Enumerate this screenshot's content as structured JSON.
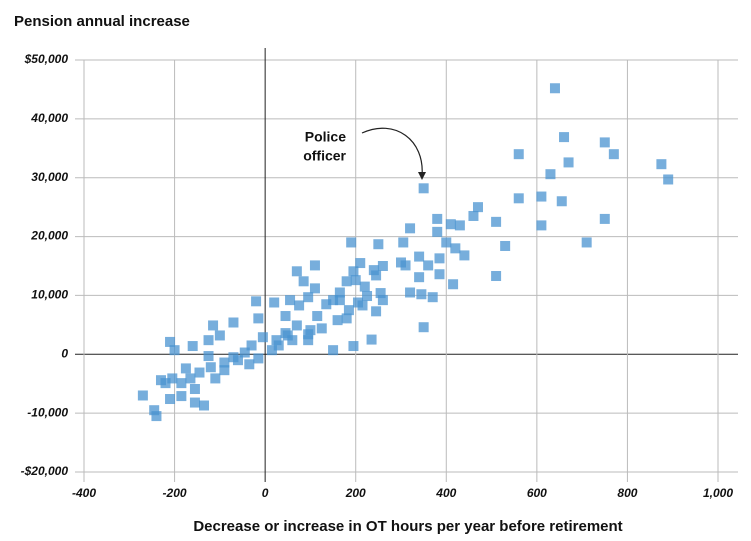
{
  "chart_data": {
    "type": "scatter",
    "title": "Pension annual increase",
    "x_label": "Decrease or increase in OT hours per year before retirement",
    "annotation": [
      "Police",
      "officer"
    ],
    "color": "#4a93d0",
    "grid": true,
    "xlim": [
      -400,
      1000
    ],
    "xticks": [
      -400,
      -200,
      0,
      200,
      400,
      600,
      800,
      {
        "value": 1000,
        "label": "1,000"
      }
    ],
    "ylim": [
      -20000,
      50000
    ],
    "yticks": [
      {
        "value": -20000,
        "label": "-$20,000"
      },
      {
        "value": -10000,
        "label": "-10,000"
      },
      0,
      {
        "value": 10000,
        "label": "10,000"
      },
      {
        "value": 20000,
        "label": "20,000"
      },
      {
        "value": 30000,
        "label": "30,000"
      },
      {
        "value": 40000,
        "label": "40,000"
      },
      {
        "value": 50000,
        "label": "$50,000"
      }
    ],
    "x": [
      640,
      660,
      560,
      750,
      770,
      670,
      875,
      890,
      630,
      610,
      655,
      560,
      350,
      610,
      750,
      710,
      510,
      530,
      510,
      470,
      460,
      410,
      430,
      380,
      380,
      320,
      305,
      400,
      420,
      440,
      385,
      360,
      340,
      310,
      300,
      340,
      385,
      415,
      370,
      345,
      320,
      350,
      250,
      190,
      245,
      260,
      240,
      210,
      195,
      180,
      165,
      150,
      200,
      220,
      255,
      245,
      235,
      195,
      150,
      215,
      185,
      115,
      160,
      125,
      100,
      135,
      110,
      110,
      70,
      85,
      95,
      75,
      55,
      20,
      -20,
      45,
      70,
      45,
      25,
      60,
      95,
      -5,
      -30,
      -15,
      -70,
      -115,
      -100,
      -125,
      -160,
      -200,
      -210,
      -45,
      -70,
      -90,
      -120,
      -145,
      -175,
      -165,
      -185,
      -205,
      -220,
      -230,
      -155,
      -185,
      -155,
      -135,
      -210,
      -270,
      -245,
      -240,
      -110,
      -90,
      -125,
      -60,
      -35,
      -15,
      15,
      30,
      50,
      95,
      165,
      205,
      180,
      225,
      260
    ],
    "values": [
      45200,
      36900,
      34000,
      36000,
      34000,
      32600,
      32300,
      29700,
      30600,
      26800,
      26000,
      26500,
      28200,
      21900,
      23000,
      19000,
      22500,
      18400,
      13300,
      25000,
      23500,
      22100,
      21900,
      23000,
      20800,
      21400,
      19000,
      19000,
      18000,
      16800,
      16300,
      15100,
      16600,
      15100,
      15600,
      13100,
      13600,
      11900,
      9700,
      10200,
      10500,
      4600,
      18700,
      19000,
      13400,
      15000,
      14300,
      15500,
      14100,
      12400,
      10500,
      9200,
      12600,
      11500,
      10400,
      7300,
      2500,
      1400,
      700,
      8300,
      7500,
      6500,
      5800,
      4400,
      4100,
      8500,
      11200,
      15100,
      14100,
      12400,
      9700,
      8300,
      9200,
      8800,
      9000,
      6500,
      4900,
      3600,
      2400,
      2400,
      2400,
      2900,
      1500,
      6100,
      5400,
      4900,
      3200,
      2400,
      1400,
      700,
      2100,
      300,
      -500,
      -1400,
      -2200,
      -3100,
      -2400,
      -4100,
      -4900,
      -4100,
      -4900,
      -4400,
      -5900,
      -7100,
      -8200,
      -8700,
      -7600,
      -7000,
      -9500,
      -10500,
      -4100,
      -2700,
      -300,
      -1000,
      -1700,
      -700,
      700,
      1500,
      3200,
      3400,
      9200,
      8800,
      6100,
      9900,
      9200
    ]
  }
}
